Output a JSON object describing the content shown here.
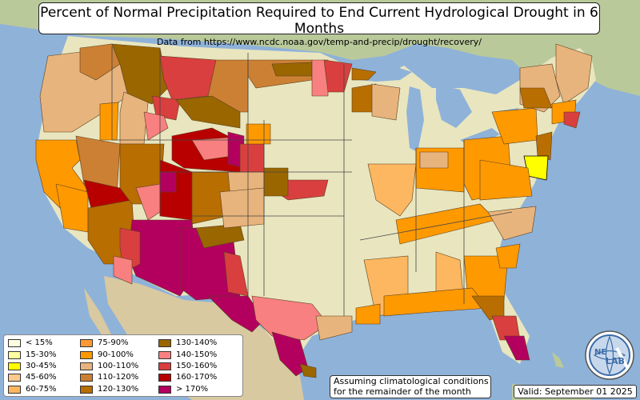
{
  "header": {
    "title": "Percent of Normal Precipitation Required to End Current Hydrological Drought in 6 Months",
    "subtitle": "Data from https://www.ncdc.noaa.gov/temp-and-precip/drought/recovery/"
  },
  "legend": {
    "items": [
      {
        "label": "< 15%",
        "color": "#ffffe0"
      },
      {
        "label": "15-30%",
        "color": "#ffffa0"
      },
      {
        "label": "30-45%",
        "color": "#ffff00"
      },
      {
        "label": "45-60%",
        "color": "#fdc98e"
      },
      {
        "label": "60-75%",
        "color": "#fdb760"
      },
      {
        "label": "75-90%",
        "color": "#fd9a33"
      },
      {
        "label": "90-100%",
        "color": "#ff9900"
      },
      {
        "label": "100-110%",
        "color": "#e8b47d"
      },
      {
        "label": "110-120%",
        "color": "#cc8033"
      },
      {
        "label": "120-130%",
        "color": "#b86e00"
      },
      {
        "label": "130-140%",
        "color": "#996600"
      },
      {
        "label": "140-150%",
        "color": "#f88080"
      },
      {
        "label": "150-160%",
        "color": "#d93f3f"
      },
      {
        "label": "160-170%",
        "color": "#b80000"
      },
      {
        "label": "> 170%",
        "color": "#b3005e"
      }
    ]
  },
  "note": {
    "line1": "Assuming climatological conditions",
    "line2": "for the remainder of the month"
  },
  "valid": "Valid: September 01 2025",
  "logo": {
    "text_top": "NE",
    "text_bottom": "LAB",
    "icon": "nexlab-globe-logo"
  }
}
